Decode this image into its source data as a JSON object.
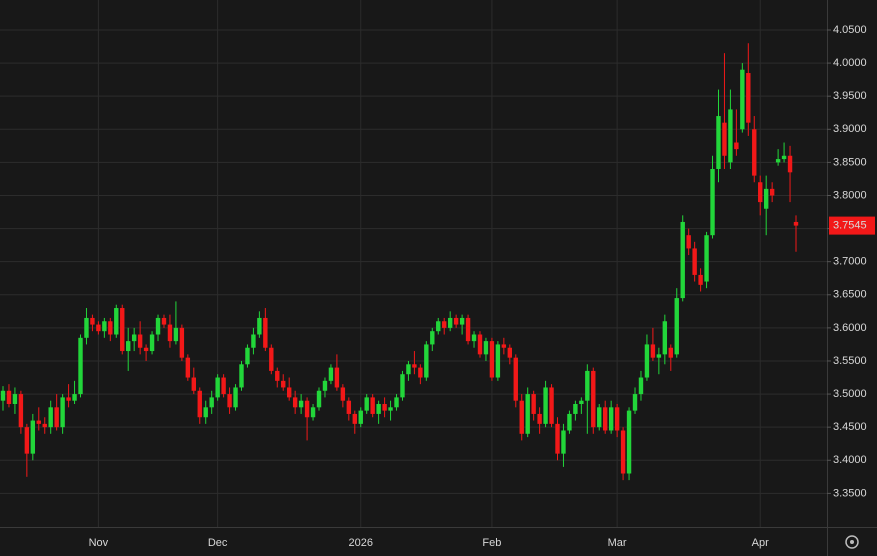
{
  "chart_data": {
    "type": "candlestick",
    "up_color": "#22d63a",
    "down_color": "#f21818",
    "ylim": [
      3.2992,
      4.0953
    ],
    "yticks": [
      {
        "value": 3.35,
        "label": "3.3500"
      },
      {
        "value": 3.4,
        "label": "3.4000"
      },
      {
        "value": 3.45,
        "label": "3.4500"
      },
      {
        "value": 3.5,
        "label": "3.5000"
      },
      {
        "value": 3.55,
        "label": "3.5500"
      },
      {
        "value": 3.6,
        "label": "3.6000"
      },
      {
        "value": 3.65,
        "label": "3.6500"
      },
      {
        "value": 3.7,
        "label": "3.7000"
      },
      {
        "value": 3.75,
        "label": "3.7500"
      },
      {
        "value": 3.8,
        "label": "3.8000"
      },
      {
        "value": 3.85,
        "label": "3.8500"
      },
      {
        "value": 3.9,
        "label": "3.9000"
      },
      {
        "value": 3.95,
        "label": "3.9500"
      },
      {
        "value": 4.0,
        "label": "4.0000"
      },
      {
        "value": 4.05,
        "label": "4.0500"
      }
    ],
    "grid": true,
    "last_price": {
      "value": 3.7545,
      "label": "3.7545"
    },
    "categories": [
      null,
      null,
      null,
      null,
      null,
      null,
      null,
      null,
      null,
      null,
      null,
      null,
      null,
      null,
      null,
      null,
      "Nov",
      null,
      null,
      null,
      null,
      null,
      null,
      null,
      null,
      null,
      null,
      null,
      null,
      null,
      null,
      null,
      null,
      null,
      null,
      null,
      "Dec",
      null,
      null,
      null,
      null,
      null,
      null,
      null,
      null,
      null,
      null,
      null,
      null,
      null,
      null,
      null,
      null,
      null,
      null,
      null,
      null,
      null,
      null,
      null,
      "2026",
      null,
      null,
      null,
      null,
      null,
      null,
      null,
      null,
      null,
      null,
      null,
      null,
      null,
      null,
      null,
      null,
      null,
      null,
      null,
      null,
      null,
      "Feb",
      null,
      null,
      null,
      null,
      null,
      null,
      null,
      null,
      null,
      null,
      null,
      null,
      null,
      null,
      null,
      null,
      null,
      null,
      null,
      null,
      "Mar",
      null,
      null,
      null,
      null,
      null,
      null,
      null,
      null,
      null,
      null,
      null,
      null,
      null,
      null,
      null,
      null,
      null,
      null,
      null,
      null,
      null,
      null,
      null,
      "Apr",
      null,
      null,
      null,
      null,
      null,
      null
    ],
    "candles": [
      [
        3.49,
        3.512,
        3.475,
        3.505
      ],
      [
        3.505,
        3.515,
        3.48,
        3.485
      ],
      [
        3.485,
        3.51,
        3.47,
        3.5
      ],
      [
        3.5,
        3.505,
        3.44,
        3.45
      ],
      [
        3.45,
        3.455,
        3.375,
        3.41
      ],
      [
        3.41,
        3.47,
        3.4,
        3.46
      ],
      [
        3.46,
        3.48,
        3.445,
        3.455
      ],
      [
        3.455,
        3.465,
        3.44,
        3.45
      ],
      [
        3.45,
        3.49,
        3.44,
        3.48
      ],
      [
        3.48,
        3.5,
        3.445,
        3.45
      ],
      [
        3.45,
        3.5,
        3.44,
        3.495
      ],
      [
        3.495,
        3.515,
        3.48,
        3.49
      ],
      [
        3.49,
        3.52,
        3.485,
        3.5
      ],
      [
        3.5,
        3.59,
        3.495,
        3.585
      ],
      [
        3.585,
        3.63,
        3.575,
        3.615
      ],
      [
        3.615,
        3.62,
        3.595,
        3.605
      ],
      [
        3.605,
        3.61,
        3.59,
        3.595
      ],
      [
        3.595,
        3.615,
        3.585,
        3.61
      ],
      [
        3.61,
        3.615,
        3.58,
        3.59
      ],
      [
        3.59,
        3.635,
        3.585,
        3.63
      ],
      [
        3.63,
        3.635,
        3.56,
        3.565
      ],
      [
        3.565,
        3.6,
        3.535,
        3.58
      ],
      [
        3.58,
        3.6,
        3.565,
        3.59
      ],
      [
        3.59,
        3.61,
        3.56,
        3.57
      ],
      [
        3.57,
        3.575,
        3.55,
        3.565
      ],
      [
        3.565,
        3.595,
        3.56,
        3.59
      ],
      [
        3.59,
        3.62,
        3.58,
        3.615
      ],
      [
        3.615,
        3.62,
        3.6,
        3.605
      ],
      [
        3.605,
        3.62,
        3.57,
        3.58
      ],
      [
        3.58,
        3.64,
        3.575,
        3.6
      ],
      [
        3.6,
        3.605,
        3.55,
        3.555
      ],
      [
        3.555,
        3.56,
        3.52,
        3.525
      ],
      [
        3.525,
        3.54,
        3.5,
        3.505
      ],
      [
        3.505,
        3.51,
        3.455,
        3.465
      ],
      [
        3.465,
        3.49,
        3.455,
        3.48
      ],
      [
        3.48,
        3.505,
        3.47,
        3.495
      ],
      [
        3.495,
        3.53,
        3.49,
        3.525
      ],
      [
        3.525,
        3.53,
        3.495,
        3.5
      ],
      [
        3.5,
        3.51,
        3.47,
        3.48
      ],
      [
        3.48,
        3.515,
        3.475,
        3.51
      ],
      [
        3.51,
        3.55,
        3.505,
        3.545
      ],
      [
        3.545,
        3.575,
        3.54,
        3.57
      ],
      [
        3.57,
        3.6,
        3.56,
        3.59
      ],
      [
        3.59,
        3.625,
        3.585,
        3.615
      ],
      [
        3.615,
        3.63,
        3.565,
        3.57
      ],
      [
        3.57,
        3.575,
        3.53,
        3.535
      ],
      [
        3.535,
        3.54,
        3.51,
        3.52
      ],
      [
        3.52,
        3.53,
        3.505,
        3.51
      ],
      [
        3.51,
        3.525,
        3.49,
        3.495
      ],
      [
        3.495,
        3.505,
        3.47,
        3.48
      ],
      [
        3.48,
        3.5,
        3.47,
        3.49
      ],
      [
        3.49,
        3.495,
        3.43,
        3.465
      ],
      [
        3.465,
        3.485,
        3.46,
        3.48
      ],
      [
        3.48,
        3.51,
        3.475,
        3.505
      ],
      [
        3.505,
        3.525,
        3.495,
        3.52
      ],
      [
        3.52,
        3.545,
        3.515,
        3.54
      ],
      [
        3.54,
        3.56,
        3.505,
        3.51
      ],
      [
        3.51,
        3.515,
        3.48,
        3.49
      ],
      [
        3.49,
        3.495,
        3.46,
        3.47
      ],
      [
        3.47,
        3.475,
        3.44,
        3.455
      ],
      [
        3.455,
        3.48,
        3.45,
        3.475
      ],
      [
        3.475,
        3.5,
        3.47,
        3.495
      ],
      [
        3.495,
        3.5,
        3.465,
        3.47
      ],
      [
        3.47,
        3.49,
        3.455,
        3.485
      ],
      [
        3.485,
        3.495,
        3.465,
        3.475
      ],
      [
        3.475,
        3.49,
        3.46,
        3.48
      ],
      [
        3.48,
        3.5,
        3.475,
        3.495
      ],
      [
        3.495,
        3.535,
        3.49,
        3.53
      ],
      [
        3.53,
        3.55,
        3.52,
        3.545
      ],
      [
        3.545,
        3.565,
        3.53,
        3.54
      ],
      [
        3.54,
        3.545,
        3.515,
        3.525
      ],
      [
        3.525,
        3.58,
        3.52,
        3.575
      ],
      [
        3.575,
        3.6,
        3.565,
        3.595
      ],
      [
        3.595,
        3.615,
        3.59,
        3.61
      ],
      [
        3.61,
        3.615,
        3.59,
        3.6
      ],
      [
        3.6,
        3.625,
        3.595,
        3.615
      ],
      [
        3.615,
        3.62,
        3.6,
        3.605
      ],
      [
        3.605,
        3.62,
        3.59,
        3.615
      ],
      [
        3.615,
        3.62,
        3.575,
        3.58
      ],
      [
        3.58,
        3.595,
        3.57,
        3.59
      ],
      [
        3.59,
        3.595,
        3.555,
        3.56
      ],
      [
        3.56,
        3.585,
        3.55,
        3.58
      ],
      [
        3.58,
        3.585,
        3.52,
        3.525
      ],
      [
        3.525,
        3.58,
        3.52,
        3.575
      ],
      [
        3.575,
        3.585,
        3.56,
        3.57
      ],
      [
        3.57,
        3.575,
        3.545,
        3.555
      ],
      [
        3.555,
        3.56,
        3.48,
        3.49
      ],
      [
        3.49,
        3.5,
        3.43,
        3.44
      ],
      [
        3.44,
        3.51,
        3.435,
        3.5
      ],
      [
        3.5,
        3.505,
        3.46,
        3.47
      ],
      [
        3.47,
        3.48,
        3.44,
        3.455
      ],
      [
        3.455,
        3.52,
        3.45,
        3.51
      ],
      [
        3.51,
        3.515,
        3.45,
        3.455
      ],
      [
        3.455,
        3.465,
        3.4,
        3.41
      ],
      [
        3.41,
        3.455,
        3.39,
        3.445
      ],
      [
        3.445,
        3.475,
        3.44,
        3.47
      ],
      [
        3.47,
        3.49,
        3.46,
        3.485
      ],
      [
        3.485,
        3.495,
        3.47,
        3.49
      ],
      [
        3.49,
        3.545,
        3.44,
        3.535
      ],
      [
        3.535,
        3.54,
        3.44,
        3.45
      ],
      [
        3.45,
        3.485,
        3.445,
        3.48
      ],
      [
        3.48,
        3.49,
        3.44,
        3.445
      ],
      [
        3.445,
        3.49,
        3.44,
        3.48
      ],
      [
        3.48,
        3.485,
        3.435,
        3.445
      ],
      [
        3.445,
        3.45,
        3.37,
        3.38
      ],
      [
        3.38,
        3.48,
        3.37,
        3.475
      ],
      [
        3.475,
        3.51,
        3.47,
        3.5
      ],
      [
        3.5,
        3.535,
        3.49,
        3.525
      ],
      [
        3.525,
        3.59,
        3.52,
        3.575
      ],
      [
        3.575,
        3.6,
        3.55,
        3.555
      ],
      [
        3.555,
        3.57,
        3.53,
        3.56
      ],
      [
        3.56,
        3.62,
        3.545,
        3.61
      ],
      [
        3.57,
        3.575,
        3.535,
        3.555
      ],
      [
        3.56,
        3.66,
        3.555,
        3.645
      ],
      [
        3.645,
        3.77,
        3.64,
        3.76
      ],
      [
        3.74,
        3.75,
        3.71,
        3.72
      ],
      [
        3.72,
        3.73,
        3.67,
        3.68
      ],
      [
        3.68,
        3.69,
        3.655,
        3.665
      ],
      [
        3.67,
        3.745,
        3.66,
        3.74
      ],
      [
        3.74,
        3.86,
        3.735,
        3.84
      ],
      [
        3.84,
        3.96,
        3.82,
        3.92
      ],
      [
        3.91,
        4.015,
        3.84,
        3.86
      ],
      [
        3.85,
        3.96,
        3.84,
        3.93
      ],
      [
        3.88,
        3.93,
        3.86,
        3.87
      ],
      [
        3.9,
        4.0,
        3.895,
        3.99
      ],
      [
        3.985,
        4.03,
        3.89,
        3.91
      ],
      [
        3.9,
        3.92,
        3.82,
        3.83
      ],
      [
        3.82,
        3.83,
        3.77,
        3.79
      ],
      [
        3.78,
        3.83,
        3.74,
        3.81
      ],
      [
        3.81,
        3.82,
        3.79,
        3.8
      ],
      [
        3.85,
        3.87,
        3.845,
        3.855
      ],
      [
        3.855,
        3.88,
        3.85,
        3.86
      ],
      [
        3.86,
        3.875,
        3.79,
        3.835
      ],
      [
        3.76,
        3.77,
        3.715,
        3.7545
      ]
    ]
  }
}
